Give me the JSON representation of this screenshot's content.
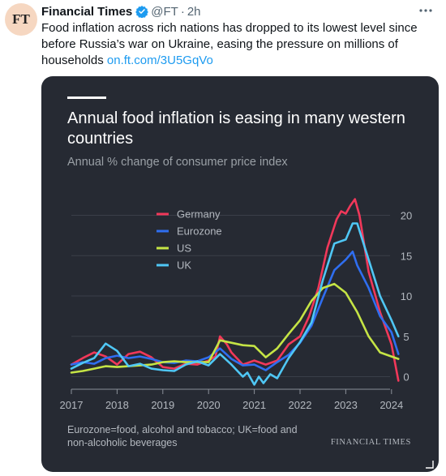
{
  "tweet": {
    "avatar_text": "FT",
    "author": "Financial Times",
    "handle": "@FT",
    "separator": "·",
    "time": "2h",
    "more_icon": "more-horizontal-icon",
    "text": "Food inflation across rich nations has dropped to its lowest level since before Russia’s war on Ukraine, easing the pressure on millions of households ",
    "link_text": "on.ft.com/3U5GqVo"
  },
  "card": {
    "title": "Annual food inflation is easing in many western countries",
    "subtitle": "Annual % change of consumer price index",
    "footnote": "Eurozone=food, alcohol and tobacco; UK=food and non-alcoholic beverages",
    "source": "FINANCIAL TIMES"
  },
  "colors": {
    "card_bg": "#262a33",
    "germany": "#f1385a",
    "eurozone": "#2f6ef0",
    "us": "#c5e445",
    "uk": "#4fc7f5",
    "verified": "#1d9bf0",
    "link": "#1d9bf0"
  },
  "chart_data": {
    "type": "line",
    "title": "Annual food inflation is easing in many western countries",
    "subtitle": "Annual % change of consumer price index",
    "xlabel": "",
    "ylabel": "",
    "xlim": [
      2017,
      2024.25
    ],
    "ylim": [
      -2,
      23
    ],
    "x_ticks": [
      2017,
      2018,
      2019,
      2020,
      2021,
      2022,
      2023,
      2024
    ],
    "y_ticks": [
      0,
      5,
      10,
      15,
      20
    ],
    "y_axis_position": "right",
    "legend_position": "top-left",
    "grid": true,
    "series": [
      {
        "name": "Germany",
        "color": "#f1385a",
        "x": [
          2017.0,
          2017.25,
          2017.5,
          2017.75,
          2018.0,
          2018.25,
          2018.5,
          2018.75,
          2019.0,
          2019.25,
          2019.5,
          2019.75,
          2020.0,
          2020.15,
          2020.25,
          2020.4,
          2020.5,
          2020.75,
          2021.0,
          2021.25,
          2021.5,
          2021.75,
          2022.0,
          2022.2,
          2022.4,
          2022.6,
          2022.8,
          2022.9,
          2023.0,
          2023.1,
          2023.2,
          2023.3,
          2023.5,
          2023.75,
          2024.0,
          2024.15
        ],
        "y": [
          1.5,
          2.3,
          3.0,
          2.5,
          1.5,
          2.8,
          3.1,
          2.4,
          1.2,
          1.0,
          1.6,
          1.5,
          2.0,
          2.5,
          5.0,
          4.0,
          3.0,
          1.5,
          2.0,
          1.5,
          2.0,
          4.0,
          5.0,
          7.5,
          11.0,
          16.0,
          19.5,
          20.5,
          20.2,
          21.2,
          22.0,
          20.0,
          13.0,
          8.0,
          4.0,
          -0.5
        ]
      },
      {
        "name": "Eurozone",
        "color": "#2f6ef0",
        "x": [
          2017.0,
          2017.25,
          2017.5,
          2017.75,
          2018.0,
          2018.25,
          2018.5,
          2018.75,
          2019.0,
          2019.25,
          2019.5,
          2019.75,
          2020.0,
          2020.25,
          2020.5,
          2020.75,
          2021.0,
          2021.25,
          2021.5,
          2021.75,
          2022.0,
          2022.25,
          2022.5,
          2022.75,
          2023.0,
          2023.15,
          2023.25,
          2023.5,
          2023.75,
          2024.0,
          2024.15
        ],
        "y": [
          1.5,
          1.8,
          1.6,
          2.3,
          2.6,
          2.3,
          2.5,
          2.2,
          1.8,
          1.7,
          2.0,
          1.9,
          2.4,
          3.5,
          2.2,
          1.4,
          1.5,
          0.8,
          1.8,
          2.7,
          4.2,
          6.3,
          9.8,
          13.2,
          14.5,
          15.5,
          13.8,
          11.0,
          7.5,
          5.5,
          2.8
        ]
      },
      {
        "name": "US",
        "color": "#c5e445",
        "x": [
          2017.0,
          2017.25,
          2017.5,
          2017.75,
          2018.0,
          2018.25,
          2018.5,
          2018.75,
          2019.0,
          2019.25,
          2019.5,
          2019.75,
          2020.0,
          2020.25,
          2020.5,
          2020.75,
          2021.0,
          2021.25,
          2021.5,
          2021.75,
          2022.0,
          2022.25,
          2022.5,
          2022.75,
          2023.0,
          2023.25,
          2023.5,
          2023.75,
          2024.0,
          2024.15
        ],
        "y": [
          0.5,
          0.7,
          1.0,
          1.3,
          1.2,
          1.3,
          1.4,
          1.5,
          1.8,
          1.9,
          1.8,
          1.8,
          1.8,
          4.5,
          4.2,
          3.9,
          3.8,
          2.4,
          3.5,
          5.3,
          7.0,
          9.4,
          11.0,
          11.5,
          10.4,
          8.0,
          5.0,
          3.0,
          2.5,
          2.2
        ]
      },
      {
        "name": "UK",
        "color": "#4fc7f5",
        "x": [
          2017.0,
          2017.25,
          2017.5,
          2017.75,
          2018.0,
          2018.25,
          2018.5,
          2018.75,
          2019.0,
          2019.25,
          2019.5,
          2019.75,
          2020.0,
          2020.25,
          2020.5,
          2020.75,
          2020.85,
          2021.0,
          2021.1,
          2021.2,
          2021.35,
          2021.5,
          2021.75,
          2022.0,
          2022.25,
          2022.5,
          2022.75,
          2023.0,
          2023.15,
          2023.25,
          2023.5,
          2023.75,
          2024.0,
          2024.15
        ],
        "y": [
          1.0,
          1.7,
          2.3,
          4.1,
          3.2,
          1.3,
          1.6,
          1.0,
          0.8,
          0.7,
          1.5,
          1.9,
          1.4,
          2.8,
          1.5,
          0.0,
          0.5,
          -1.0,
          0.0,
          -0.8,
          0.3,
          -0.2,
          2.3,
          4.3,
          6.7,
          12.0,
          16.5,
          17.0,
          19.0,
          19.0,
          14.5,
          10.0,
          7.0,
          5.0
        ]
      }
    ]
  }
}
